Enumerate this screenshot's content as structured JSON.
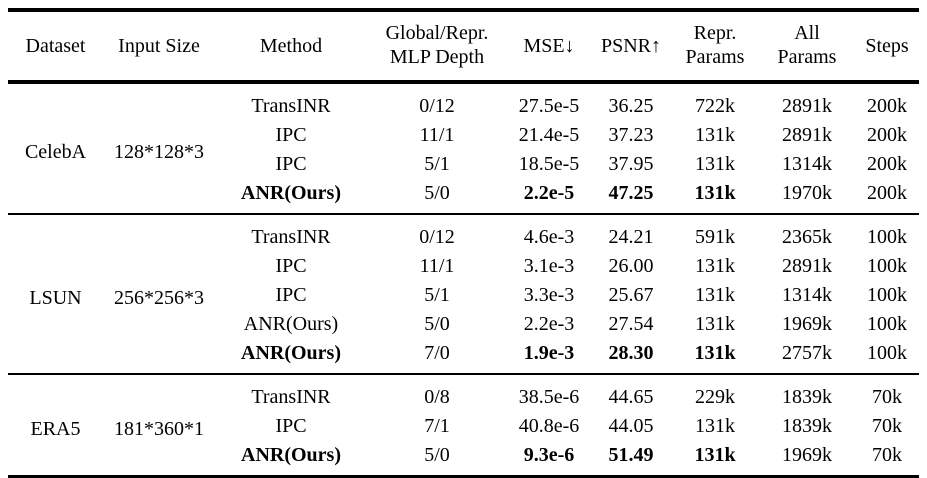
{
  "colors": {
    "text": "#000000",
    "background": "#ffffff",
    "rule": "#000000"
  },
  "header": {
    "dataset": "Dataset",
    "input_size": "Input Size",
    "method": "Method",
    "depth_line1": "Global/Repr.",
    "depth_line2": "MLP Depth",
    "mse": "MSE↓",
    "psnr": "PSNR↑",
    "repr_line1": "Repr.",
    "repr_line2": "Params",
    "all_line1": "All",
    "all_line2": "Params",
    "steps": "Steps"
  },
  "table": {
    "groups": [
      {
        "dataset": "CelebA",
        "input_size": "128*128*3",
        "rows": [
          {
            "method": "TransINR",
            "depth": "0/12",
            "mse": "27.5e-5",
            "psnr": "36.25",
            "repr_params": "722k",
            "all_params": "2891k",
            "steps": "200k"
          },
          {
            "method": "IPC",
            "depth": "11/1",
            "mse": "21.4e-5",
            "psnr": "37.23",
            "repr_params": "131k",
            "all_params": "2891k",
            "steps": "200k"
          },
          {
            "method": "IPC",
            "depth": "5/1",
            "mse": "18.5e-5",
            "psnr": "37.95",
            "repr_params": "131k",
            "all_params": "1314k",
            "steps": "200k"
          },
          {
            "method": "ANR(Ours)",
            "depth": "5/0",
            "mse": "2.2e-5",
            "psnr": "47.25",
            "repr_params": "131k",
            "all_params": "1970k",
            "steps": "200k"
          }
        ]
      },
      {
        "dataset": "LSUN",
        "input_size": "256*256*3",
        "rows": [
          {
            "method": "TransINR",
            "depth": "0/12",
            "mse": "4.6e-3",
            "psnr": "24.21",
            "repr_params": "591k",
            "all_params": "2365k",
            "steps": "100k"
          },
          {
            "method": "IPC",
            "depth": "11/1",
            "mse": "3.1e-3",
            "psnr": "26.00",
            "repr_params": "131k",
            "all_params": "2891k",
            "steps": "100k"
          },
          {
            "method": "IPC",
            "depth": "5/1",
            "mse": "3.3e-3",
            "psnr": "25.67",
            "repr_params": "131k",
            "all_params": "1314k",
            "steps": "100k"
          },
          {
            "method": "ANR(Ours)",
            "depth": "5/0",
            "mse": "2.2e-3",
            "psnr": "27.54",
            "repr_params": "131k",
            "all_params": "1969k",
            "steps": "100k"
          },
          {
            "method": "ANR(Ours)",
            "depth": "7/0",
            "mse": "1.9e-3",
            "psnr": "28.30",
            "repr_params": "131k",
            "all_params": "2757k",
            "steps": "100k"
          }
        ]
      },
      {
        "dataset": "ERA5",
        "input_size": "181*360*1",
        "rows": [
          {
            "method": "TransINR",
            "depth": "0/8",
            "mse": "38.5e-6",
            "psnr": "44.65",
            "repr_params": "229k",
            "all_params": "1839k",
            "steps": "70k"
          },
          {
            "method": "IPC",
            "depth": "7/1",
            "mse": "40.8e-6",
            "psnr": "44.05",
            "repr_params": "131k",
            "all_params": "1839k",
            "steps": "70k"
          },
          {
            "method": "ANR(Ours)",
            "depth": "5/0",
            "mse": "9.3e-6",
            "psnr": "51.49",
            "repr_params": "131k",
            "all_params": "1969k",
            "steps": "70k"
          }
        ]
      }
    ]
  }
}
